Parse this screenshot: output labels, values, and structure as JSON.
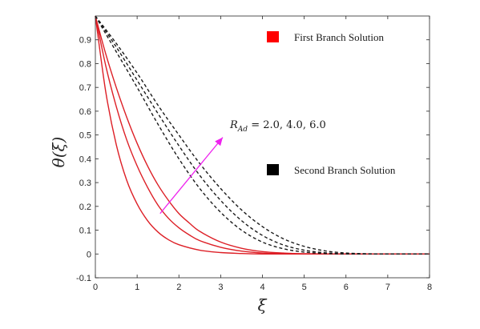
{
  "chart_data": {
    "type": "line",
    "xlabel": "ξ",
    "ylabel": "θ(ξ)",
    "xlim": [
      0,
      8
    ],
    "ylim": [
      -0.1,
      1.0
    ],
    "xticks": [
      "0",
      "1",
      "2",
      "3",
      "4",
      "5",
      "6",
      "7",
      "8"
    ],
    "yticks": [
      "-0.1",
      "0",
      "0.1",
      "0.2",
      "0.3",
      "0.4",
      "0.5",
      "0.6",
      "0.7",
      "0.8",
      "0.9"
    ],
    "grid": false,
    "annotation": {
      "text_main": "R",
      "text_sub": "Ad",
      "text_rest": " = 2.0, 4.0, 6.0",
      "arrow_from": [
        1.55,
        0.17
      ],
      "arrow_to": [
        3.05,
        0.49
      ],
      "arrow_color": "#ee22ee"
    },
    "legend": [
      {
        "label": "First Branch Solution",
        "color": "#ff0000"
      },
      {
        "label": "Second Branch Solution",
        "color": "#000000"
      }
    ],
    "series": [
      {
        "branch": "first",
        "color": "#dd1f26",
        "style": "solid",
        "x": [
          0,
          0.25,
          0.5,
          0.75,
          1.0,
          1.25,
          1.5,
          1.75,
          2.0,
          2.5,
          3.0,
          3.5,
          4.0,
          4.5,
          5.0,
          6.0,
          7.0,
          8.0
        ],
        "y": [
          1.0,
          0.68,
          0.46,
          0.31,
          0.21,
          0.14,
          0.092,
          0.06,
          0.039,
          0.016,
          0.006,
          0.002,
          0.0,
          0.0,
          0.0,
          0.0,
          0.0,
          0.0
        ]
      },
      {
        "branch": "first",
        "color": "#dd1f26",
        "style": "solid",
        "x": [
          0,
          0.25,
          0.5,
          0.75,
          1.0,
          1.25,
          1.5,
          1.75,
          2.0,
          2.25,
          2.5,
          3.0,
          3.5,
          4.0,
          4.5,
          5.0,
          6.0,
          7.0,
          8.0
        ],
        "y": [
          1.0,
          0.79,
          0.62,
          0.48,
          0.37,
          0.28,
          0.205,
          0.15,
          0.11,
          0.08,
          0.056,
          0.028,
          0.012,
          0.004,
          0.001,
          0.0,
          0.0,
          0.0,
          0.0
        ]
      },
      {
        "branch": "first",
        "color": "#dd1f26",
        "style": "solid",
        "x": [
          0,
          0.25,
          0.5,
          0.75,
          1.0,
          1.25,
          1.5,
          1.75,
          2.0,
          2.25,
          2.5,
          3.0,
          3.5,
          4.0,
          4.5,
          5.0,
          6.0,
          7.0,
          8.0
        ],
        "y": [
          1.0,
          0.84,
          0.7,
          0.575,
          0.465,
          0.37,
          0.29,
          0.225,
          0.17,
          0.13,
          0.095,
          0.05,
          0.024,
          0.01,
          0.004,
          0.001,
          0.0,
          0.0,
          0.0
        ]
      },
      {
        "branch": "second",
        "color": "#1a1a1a",
        "style": "dashed",
        "x": [
          0,
          0.5,
          1.0,
          1.5,
          2.0,
          2.5,
          3.0,
          3.5,
          4.0,
          4.5,
          5.0,
          5.5,
          6.0,
          7.0,
          8.0
        ],
        "y": [
          1.0,
          0.85,
          0.7,
          0.545,
          0.4,
          0.275,
          0.175,
          0.1,
          0.05,
          0.022,
          0.008,
          0.002,
          0.0,
          0.0,
          0.0
        ]
      },
      {
        "branch": "second",
        "color": "#1a1a1a",
        "style": "dashed",
        "x": [
          0,
          0.5,
          1.0,
          1.5,
          2.0,
          2.5,
          3.0,
          3.5,
          4.0,
          4.5,
          5.0,
          5.5,
          6.0,
          7.0,
          8.0
        ],
        "y": [
          1.0,
          0.87,
          0.73,
          0.59,
          0.455,
          0.33,
          0.225,
          0.14,
          0.078,
          0.038,
          0.016,
          0.005,
          0.001,
          0.0,
          0.0
        ]
      },
      {
        "branch": "second",
        "color": "#1a1a1a",
        "style": "dashed",
        "x": [
          0,
          0.5,
          1.0,
          1.5,
          2.0,
          2.5,
          3.0,
          3.5,
          4.0,
          4.5,
          5.0,
          5.5,
          6.0,
          6.5,
          7.0,
          8.0
        ],
        "y": [
          1.0,
          0.885,
          0.76,
          0.625,
          0.5,
          0.38,
          0.275,
          0.185,
          0.115,
          0.064,
          0.032,
          0.013,
          0.004,
          0.001,
          0.0,
          0.0
        ]
      }
    ]
  }
}
